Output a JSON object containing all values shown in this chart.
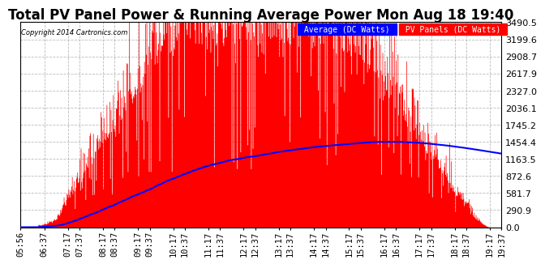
{
  "title": "Total PV Panel Power & Running Average Power Mon Aug 18 19:40",
  "copyright": "Copyright 2014 Cartronics.com",
  "legend_avg": "Average (DC Watts)",
  "legend_pv": "PV Panels (DC Watts)",
  "ylabel_values": [
    0.0,
    290.9,
    581.7,
    872.6,
    1163.5,
    1454.4,
    1745.2,
    2036.1,
    2327.0,
    2617.9,
    2908.7,
    3199.6,
    3490.5
  ],
  "ymax": 3490.5,
  "ymin": 0.0,
  "bg_color": "#ffffff",
  "grid_color": "#aaaaaa",
  "pv_color": "#ff0000",
  "avg_color": "#0000ff",
  "title_fontsize": 12,
  "tick_fontsize": 7.5,
  "xtick_labels": [
    "05:56",
    "06:37",
    "07:17",
    "07:37",
    "08:17",
    "08:37",
    "09:17",
    "09:37",
    "10:17",
    "10:37",
    "11:17",
    "11:37",
    "12:17",
    "12:37",
    "13:17",
    "13:37",
    "14:17",
    "14:37",
    "15:17",
    "15:37",
    "16:17",
    "16:37",
    "17:17",
    "17:37",
    "18:17",
    "18:37",
    "19:17",
    "19:37"
  ],
  "start_time": "05:56",
  "end_time": "19:37"
}
